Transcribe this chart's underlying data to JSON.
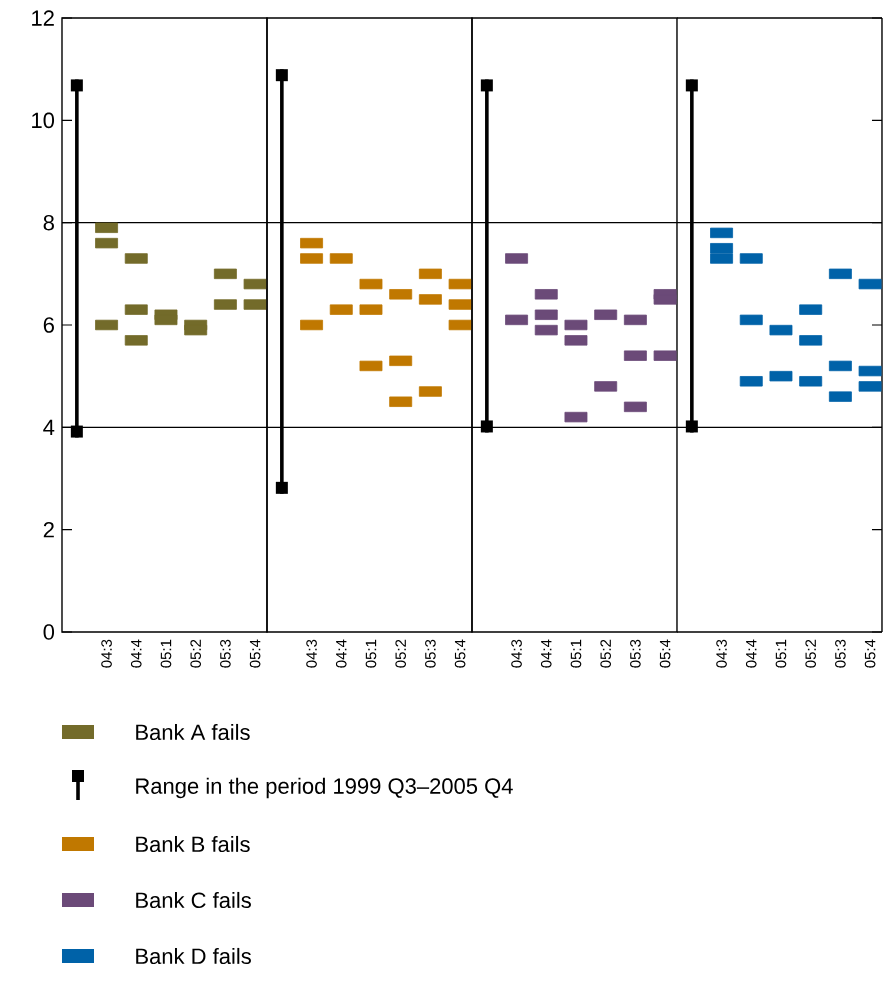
{
  "chart_data": [
    {
      "type": "scatter",
      "categories": [
        null,
        "04:3",
        "04:4",
        "05:1",
        "05:2",
        "05:3",
        "05:4"
      ],
      "ylim": [
        0,
        12
      ],
      "yticks": [
        0,
        2,
        4,
        6,
        8,
        10,
        12
      ],
      "marker": "square",
      "legend": "bottom",
      "ref_lines": [
        {
          "axis": "y",
          "value": 4,
          "color": "#000000"
        },
        {
          "axis": "y",
          "value": 8,
          "color": "#000000"
        }
      ],
      "series": [
        {
          "name": "Bank A fails",
          "color": "#736b2a",
          "x": [
            "04:3",
            "04:3",
            "04:3",
            "04:4",
            "04:4",
            "04:4",
            "05:1",
            "05:1",
            "05:2",
            "05:2",
            "05:3",
            "05:3",
            "05:4",
            "05:4"
          ],
          "values": [
            7.9,
            7.6,
            6.0,
            7.3,
            6.3,
            5.7,
            6.2,
            6.1,
            6.0,
            5.9,
            7.0,
            6.4,
            6.8,
            6.4
          ]
        },
        {
          "name": "Range in the period 1999 Q3–2005 Q4",
          "type": "bar",
          "color": "#000000",
          "base": [
            3.8,
            null,
            null,
            null,
            null,
            null,
            null
          ],
          "values": [
            7.0,
            null,
            null,
            null,
            null,
            null,
            null
          ]
        }
      ]
    },
    {
      "type": "scatter",
      "categories": [
        null,
        "04:3",
        "04:4",
        "05:1",
        "05:2",
        "05:3",
        "05:4"
      ],
      "ylim": [
        0,
        12
      ],
      "yticks": [
        0,
        2,
        4,
        6,
        8,
        10,
        12
      ],
      "marker": "square",
      "legend": "bottom",
      "tick_labels": "x",
      "ref_lines": [
        {
          "axis": "y",
          "value": 4,
          "color": "#000000"
        },
        {
          "axis": "y",
          "value": 8,
          "color": "#000000"
        }
      ],
      "series": [
        {
          "name": "Bank B fails",
          "color": "#c07800",
          "x": [
            "04:3",
            "04:3",
            "04:3",
            "04:4",
            "04:4",
            "05:1",
            "05:1",
            "05:1",
            "05:2",
            "05:2",
            "05:2",
            "05:3",
            "05:3",
            "05:3",
            "05:4",
            "05:4",
            "05:4"
          ],
          "values": [
            7.6,
            7.3,
            6.0,
            7.3,
            6.3,
            6.8,
            6.3,
            5.2,
            6.6,
            5.3,
            4.5,
            7.0,
            6.5,
            4.7,
            6.8,
            6.4,
            6.0
          ]
        },
        {
          "type": "bar",
          "color": "#000000",
          "base": [
            2.7,
            null,
            null,
            null,
            null,
            null,
            null
          ],
          "values": [
            8.3,
            null,
            null,
            null,
            null,
            null,
            null
          ]
        }
      ]
    },
    {
      "type": "scatter",
      "categories": [
        null,
        "04:3",
        "04:4",
        "05:1",
        "05:2",
        "05:3",
        "05:4"
      ],
      "ylim": [
        0,
        12
      ],
      "yticks": [
        0,
        2,
        4,
        6,
        8,
        10,
        12
      ],
      "marker": "square",
      "legend": "bottom",
      "tick_labels": "x",
      "ref_lines": [
        {
          "axis": "y",
          "value": 4,
          "color": "#000000"
        },
        {
          "axis": "y",
          "value": 8,
          "color": "#000000"
        }
      ],
      "series": [
        {
          "name": "Bank C fails",
          "color": "#6b4a78",
          "x": [
            "04:3",
            "04:3",
            "04:4",
            "04:4",
            "04:4",
            "05:1",
            "05:1",
            "05:1",
            "05:2",
            "05:2",
            "05:3",
            "05:3",
            "05:3",
            "05:4",
            "05:4",
            "05:4"
          ],
          "values": [
            7.3,
            6.1,
            6.6,
            6.2,
            5.9,
            6.0,
            5.7,
            4.2,
            6.2,
            4.8,
            6.1,
            5.4,
            4.4,
            6.6,
            6.5,
            5.4
          ]
        },
        {
          "type": "bar",
          "color": "#000000",
          "base": [
            3.9,
            null,
            null,
            null,
            null,
            null,
            null
          ],
          "values": [
            6.9,
            null,
            null,
            null,
            null,
            null,
            null
          ]
        }
      ]
    },
    {
      "type": "scatter",
      "categories": [
        null,
        "04:3",
        "04:4",
        "05:1",
        "05:2",
        "05:3",
        "05:4"
      ],
      "ylim": [
        0,
        12
      ],
      "yticks": [
        0,
        2,
        4,
        6,
        8,
        10,
        12
      ],
      "marker": "square",
      "legend": "bottom",
      "tick_labels": "x",
      "ref_lines": [
        {
          "axis": "y",
          "value": 4,
          "color": "#000000"
        },
        {
          "axis": "y",
          "value": 8,
          "color": "#000000"
        }
      ],
      "series": [
        {
          "name": "Bank D fails",
          "color": "#0062a8",
          "x": [
            "04:3",
            "04:3",
            "04:3",
            "04:4",
            "04:4",
            "04:4",
            "05:1",
            "05:1",
            "05:2",
            "05:2",
            "05:2",
            "05:3",
            "05:3",
            "05:3",
            "05:4",
            "05:4",
            "05:4"
          ],
          "values": [
            7.8,
            7.5,
            7.3,
            7.3,
            6.1,
            4.9,
            5.9,
            5.0,
            6.3,
            5.7,
            4.9,
            7.0,
            5.2,
            4.6,
            6.8,
            5.1,
            4.8
          ]
        },
        {
          "type": "bar",
          "color": "#000000",
          "base": [
            3.9,
            null,
            null,
            null,
            null,
            null,
            null
          ],
          "values": [
            6.9,
            null,
            null,
            null,
            null,
            null,
            null
          ]
        }
      ]
    }
  ]
}
